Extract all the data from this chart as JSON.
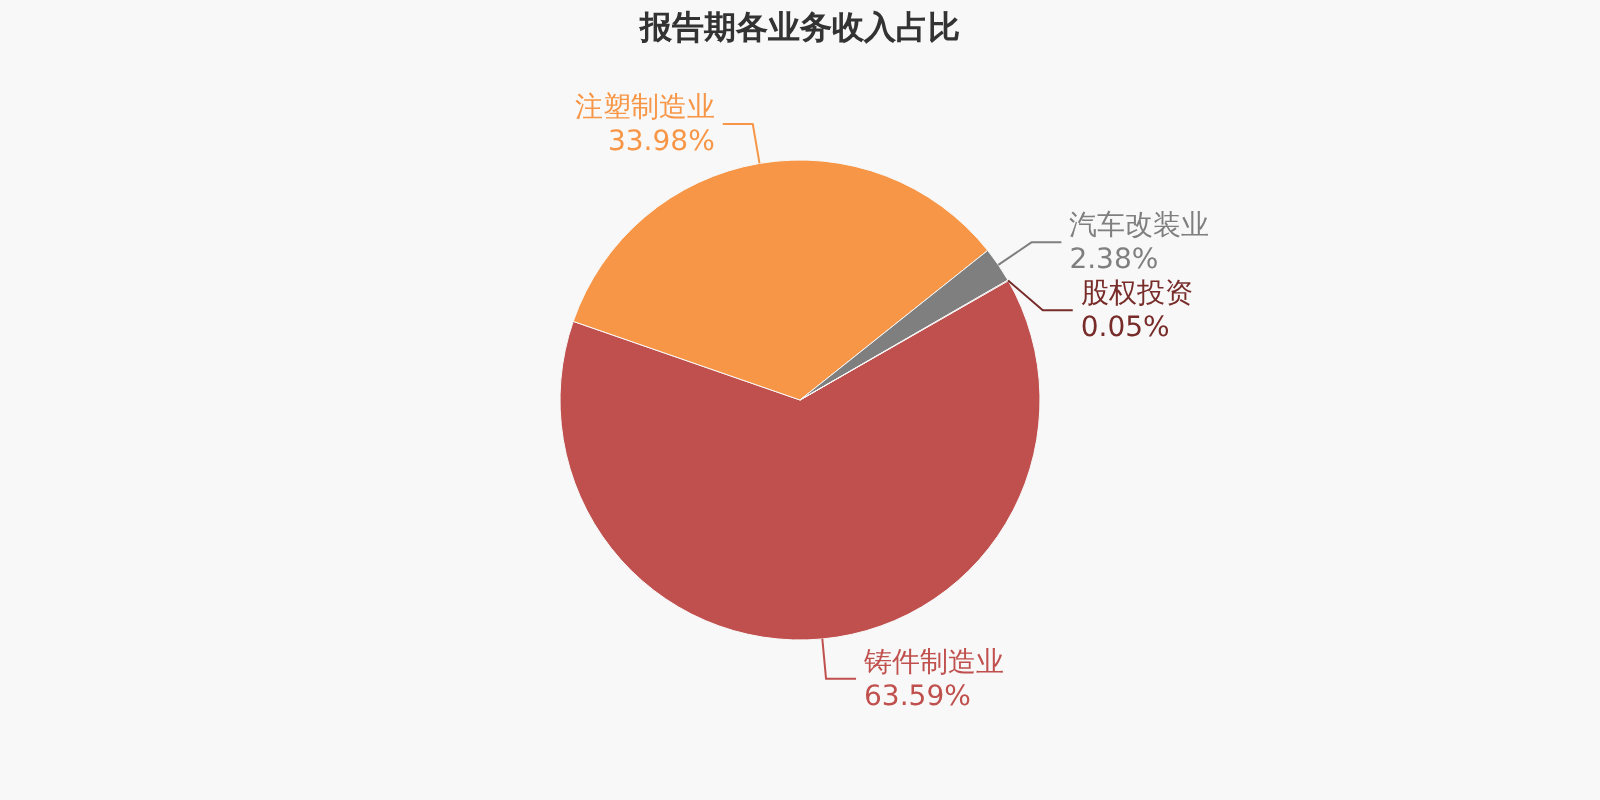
{
  "chart_data": {
    "type": "pie",
    "title": "报告期各业务收入占比",
    "categories": [
      "铸件制造业",
      "注塑制造业",
      "汽车改装业",
      "股权投资"
    ],
    "values": [
      63.59,
      33.98,
      2.38,
      0.05
    ],
    "value_labels": [
      "63.59%",
      "33.98%",
      "2.38%",
      "0.05%"
    ],
    "colors": [
      "#c0504d",
      "#f79646",
      "#7f7f7f",
      "#772c2a"
    ]
  }
}
